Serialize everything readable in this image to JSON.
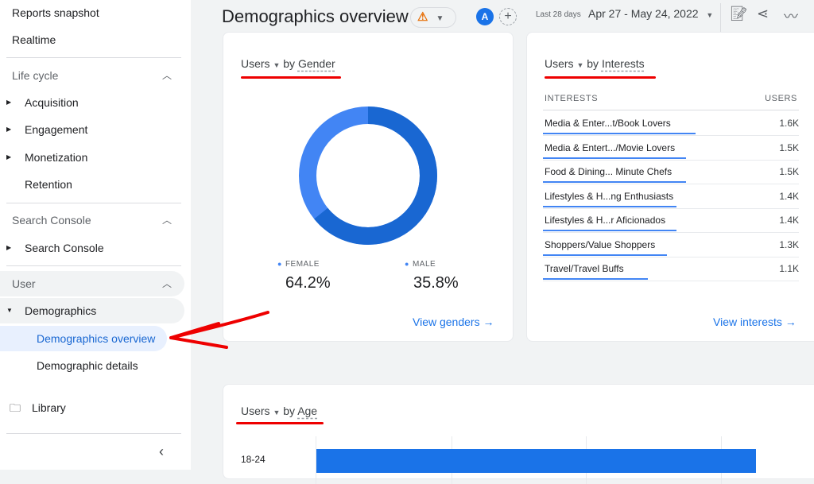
{
  "sidebar": {
    "items": [
      {
        "label": "Reports snapshot"
      },
      {
        "label": "Realtime"
      },
      {
        "label": "Life cycle"
      },
      {
        "label": "Acquisition"
      },
      {
        "label": "Engagement"
      },
      {
        "label": "Monetization"
      },
      {
        "label": "Retention"
      },
      {
        "label": "Search Console"
      },
      {
        "label": "Search Console"
      },
      {
        "label": "User"
      },
      {
        "label": "Demographics"
      },
      {
        "label": "Demographics overview"
      },
      {
        "label": "Demographic details"
      },
      {
        "label": "Library"
      }
    ]
  },
  "header": {
    "title": "Demographics overview",
    "avatar": "A",
    "range_label": "Last 28 days",
    "dates": "Apr 27 - May 24, 2022"
  },
  "gender": {
    "metric": "Users",
    "by": "by",
    "dim": "Gender",
    "female_label": "FEMALE",
    "female": "64.2%",
    "male_label": "MALE",
    "male": "35.8%",
    "link": "View genders",
    "colors": {
      "female": "#1967d2",
      "male": "#4285f4"
    }
  },
  "interests": {
    "metric": "Users",
    "by": "by",
    "dim": "Interests",
    "col1": "INTERESTS",
    "col2": "USERS",
    "link": "View interests",
    "rows": [
      {
        "name": "Media & Enter...t/Book Lovers",
        "value": "1.6K",
        "n": 1.6
      },
      {
        "name": "Media & Entert.../Movie Lovers",
        "value": "1.5K",
        "n": 1.5
      },
      {
        "name": "Food & Dining... Minute Chefs",
        "value": "1.5K",
        "n": 1.5
      },
      {
        "name": "Lifestyles & H...ng Enthusiasts",
        "value": "1.4K",
        "n": 1.4
      },
      {
        "name": "Lifestyles & H...r Aficionados",
        "value": "1.4K",
        "n": 1.4
      },
      {
        "name": "Shoppers/Value Shoppers",
        "value": "1.3K",
        "n": 1.3
      },
      {
        "name": "Travel/Travel Buffs",
        "value": "1.1K",
        "n": 1.1
      }
    ]
  },
  "age": {
    "metric": "Users",
    "by": "by",
    "dim": "Age",
    "rows": [
      {
        "label": "18-24"
      }
    ]
  }
}
